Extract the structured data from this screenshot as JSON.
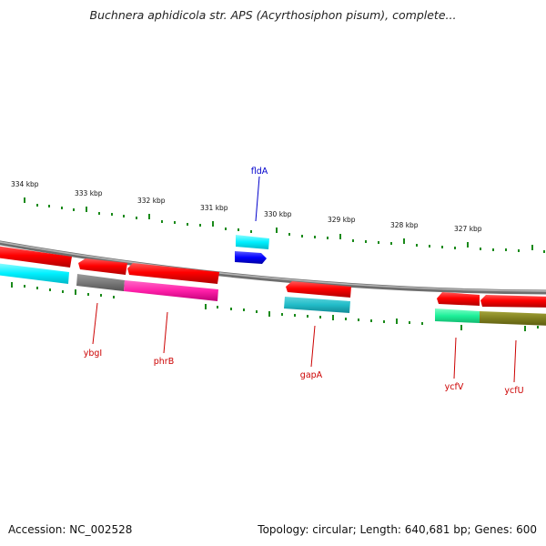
{
  "title": "Buchnera aphidicola str. APS (Acyrthosiphon pisum), complete...",
  "footer": {
    "accession": "Accession: NC_002528",
    "summary": "Topology: circular; Length: 640,681 bp; Genes: 600"
  },
  "scale_labels": [
    "334 kbp",
    "333 kbp",
    "332 kbp",
    "331 kbp",
    "330 kbp",
    "329 kbp",
    "328 kbp",
    "327 kbp"
  ],
  "genes": [
    {
      "name": "ybgI",
      "color": "#cc0000"
    },
    {
      "name": "phrB",
      "color": "#cc0000"
    },
    {
      "name": "fldA",
      "color": "#0000cc"
    },
    {
      "name": "gapA",
      "color": "#cc0000"
    },
    {
      "name": "ycfV",
      "color": "#cc0000"
    },
    {
      "name": "ycfU",
      "color": "#cc0000"
    }
  ],
  "colors": {
    "backbone": "#888888",
    "forward_cds": "#ff0000",
    "reverse_cds": "#ff0000",
    "tick": "#1a8a1a"
  }
}
